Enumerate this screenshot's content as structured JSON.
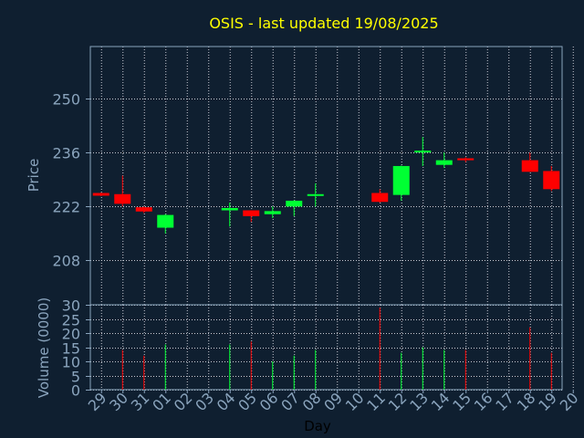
{
  "chart_data": {
    "type": "candlestick",
    "title": "OSIS - last updated 19/08/2025",
    "price_panel": {
      "ylabel": "Price",
      "ylim": [
        196.5,
        263.5
      ],
      "yticks": [
        208,
        222,
        236,
        250
      ]
    },
    "volume_panel": {
      "ylabel": "Volume (0000)",
      "ylim": [
        0,
        30
      ],
      "yticks": [
        0,
        5,
        10,
        15,
        20,
        25,
        30
      ]
    },
    "xlabel": "Day",
    "days": [
      "29",
      "30",
      "31",
      "01",
      "02",
      "03",
      "04",
      "05",
      "06",
      "07",
      "08",
      "09",
      "10",
      "11",
      "12",
      "13",
      "14",
      "15",
      "16",
      "17",
      "18",
      "19",
      "20"
    ],
    "candles": [
      {
        "day": "29",
        "open": 225.5,
        "close": 224.8,
        "high": 225.6,
        "low": 224.7,
        "volume": 0
      },
      {
        "day": "30",
        "open": 225.2,
        "close": 222.7,
        "high": 230.0,
        "low": 222.0,
        "volume": 14
      },
      {
        "day": "31",
        "open": 221.8,
        "close": 220.7,
        "high": 222.0,
        "low": 220.3,
        "volume": 12
      },
      {
        "day": "01",
        "open": 216.5,
        "close": 219.8,
        "high": 220.0,
        "low": 215.0,
        "volume": 16
      },
      {
        "day": "04",
        "open": 221.0,
        "close": 221.6,
        "high": 223.0,
        "low": 216.8,
        "volume": 16
      },
      {
        "day": "05",
        "open": 221.0,
        "close": 219.5,
        "high": 221.0,
        "low": 218.0,
        "volume": 17
      },
      {
        "day": "06",
        "open": 220.0,
        "close": 220.8,
        "high": 222.0,
        "low": 219.0,
        "volume": 10
      },
      {
        "day": "07",
        "open": 222.0,
        "close": 223.5,
        "high": 223.6,
        "low": 219.5,
        "volume": 12
      },
      {
        "day": "08",
        "open": 225.0,
        "close": 225.2,
        "high": 228.0,
        "low": 222.0,
        "volume": 14
      },
      {
        "day": "11",
        "open": 225.5,
        "close": 223.2,
        "high": 226.5,
        "low": 223.0,
        "volume": 29
      },
      {
        "day": "12",
        "open": 225.0,
        "close": 232.5,
        "high": 232.6,
        "low": 223.5,
        "volume": 13
      },
      {
        "day": "13",
        "open": 236.0,
        "close": 236.5,
        "high": 240.0,
        "low": 232.5,
        "volume": 15
      },
      {
        "day": "14",
        "open": 232.8,
        "close": 234.0,
        "high": 236.0,
        "low": 232.0,
        "volume": 14
      },
      {
        "day": "15",
        "open": 234.5,
        "close": 234.0,
        "high": 234.8,
        "low": 233.5,
        "volume": 14
      },
      {
        "day": "18",
        "open": 234.0,
        "close": 231.0,
        "high": 236.0,
        "low": 231.0,
        "volume": 22
      },
      {
        "day": "19",
        "open": 231.2,
        "close": 226.5,
        "high": 232.5,
        "low": 226.0,
        "volume": 13
      }
    ],
    "grid": true,
    "colors": {
      "up": "#00ff33",
      "down": "#ff0000",
      "background": "#0f1f30",
      "grid": "#c8ccd4",
      "axis_text": "#8aa4bd",
      "title": "#ffff00",
      "axis_line": "#8aa4bd",
      "xlabel": "#000000"
    }
  }
}
